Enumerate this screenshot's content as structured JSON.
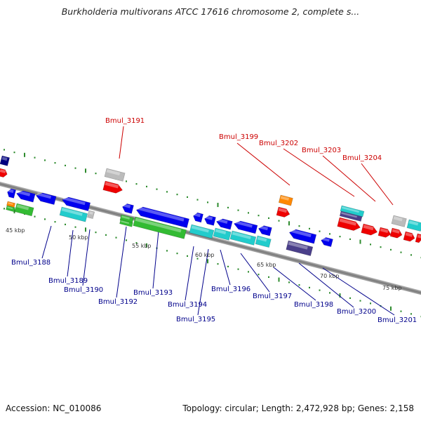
{
  "title": "Burkholderia multivorans ATCC 17616 chromosome 2, complete s...",
  "footer": {
    "accession": "Accession: NC_010086",
    "topology": "Topology: circular; Length: 2,472,928 bp; Genes: 2,158"
  },
  "kbp_labels": [
    "45 kbp",
    "50 kbp",
    "55 kbp",
    "60 kbp",
    "65 kbp",
    "70 kbp",
    "75 kbp"
  ],
  "genes_top": [
    "Bmul_3191",
    "Bmul_3199",
    "Bmul_3202",
    "Bmul_3203",
    "Bmul_3204"
  ],
  "genes_bottom": [
    "Bmul_3188",
    "Bmul_3189",
    "Bmul_3190",
    "Bmul_3192",
    "Bmul_3193",
    "Bmul_3194",
    "Bmul_3195",
    "Bmul_3196",
    "Bmul_3197",
    "Bmul_3198",
    "Bmul_3200",
    "Bmul_3201"
  ],
  "colors": {
    "top_label": "#cc0000",
    "bottom_label": "#00008b",
    "axis": "#888888",
    "tick": "#2e8b2e",
    "blue": "#0000ee",
    "red": "#ee0000",
    "green": "#33bb33",
    "cyan": "#22cccc",
    "gray": "#bbbbbb",
    "orange": "#ff8800",
    "navy": "#000080",
    "slate": "#4a3f8a"
  }
}
